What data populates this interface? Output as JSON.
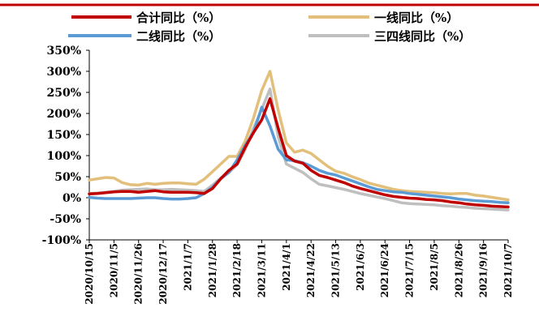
{
  "chart_data": {
    "type": "line",
    "title": "",
    "xlabel": "",
    "ylabel": "",
    "ylim": [
      -100,
      350
    ],
    "y_ticks": [
      -100,
      -50,
      0,
      50,
      100,
      150,
      200,
      250,
      300,
      350
    ],
    "y_tick_labels": [
      "-100%",
      "-50%",
      "0%",
      "50%",
      "100%",
      "150%",
      "200%",
      "250%",
      "300%",
      "350%"
    ],
    "x_tick_labels": [
      "2020/10/15",
      "2020/11/5",
      "2020/11/26",
      "2020/12/17",
      "2021/1/7",
      "2021/1/28",
      "2021/2/18",
      "2021/3/11",
      "2021/4/1",
      "2021/4/22",
      "2021/5/13",
      "2021/6/3",
      "2021/6/24",
      "2021/7/15",
      "2021/8/5",
      "2021/8/26",
      "2021/9/16",
      "2021/10/7"
    ],
    "grid": false,
    "legend": "top",
    "series": [
      {
        "name": "合计同比（%）",
        "color": "#c00000",
        "values": [
          9,
          10,
          12,
          14,
          15,
          15,
          13,
          15,
          17,
          14,
          13,
          13,
          13,
          12,
          10,
          22,
          45,
          65,
          80,
          120,
          155,
          185,
          235,
          165,
          100,
          87,
          82,
          65,
          53,
          48,
          42,
          36,
          28,
          22,
          17,
          12,
          7,
          3,
          1,
          -1,
          -2,
          -4,
          -5,
          -7,
          -10,
          -12,
          -15,
          -17,
          -18,
          -20,
          -21,
          -22
        ]
      },
      {
        "name": "一线同比（%）",
        "color": "#e2bf7a",
        "values": [
          42,
          45,
          48,
          47,
          36,
          31,
          30,
          34,
          32,
          34,
          35,
          35,
          33,
          32,
          44,
          62,
          80,
          98,
          98,
          135,
          190,
          255,
          300,
          208,
          130,
          108,
          113,
          105,
          90,
          75,
          63,
          58,
          50,
          43,
          35,
          30,
          25,
          20,
          17,
          15,
          14,
          13,
          12,
          10,
          9,
          10,
          10,
          6,
          4,
          1,
          -2,
          -5
        ]
      },
      {
        "name": "二线同比（%）",
        "color": "#5b9bd5",
        "values": [
          1,
          -1,
          -2,
          -2,
          -2,
          -2,
          -1,
          0,
          0,
          -2,
          -3,
          -3,
          -2,
          0,
          10,
          25,
          45,
          60,
          90,
          125,
          155,
          215,
          170,
          115,
          90,
          88,
          83,
          75,
          65,
          58,
          54,
          47,
          40,
          33,
          26,
          20,
          17,
          14,
          13,
          10,
          8,
          6,
          4,
          2,
          0,
          -3,
          -5,
          -7,
          -8,
          -9,
          -11,
          -12
        ]
      },
      {
        "name": "三四线同比（%）",
        "color": "#bfbfbf",
        "values": [
          10,
          11,
          13,
          15,
          18,
          19,
          20,
          21,
          19,
          19,
          20,
          19,
          18,
          17,
          15,
          30,
          47,
          60,
          78,
          115,
          165,
          210,
          258,
          145,
          80,
          70,
          60,
          45,
          32,
          28,
          24,
          20,
          15,
          10,
          6,
          2,
          -2,
          -7,
          -12,
          -14,
          -15,
          -16,
          -17,
          -19,
          -20,
          -22,
          -23,
          -25,
          -26,
          -27,
          -28,
          -29
        ]
      }
    ]
  }
}
